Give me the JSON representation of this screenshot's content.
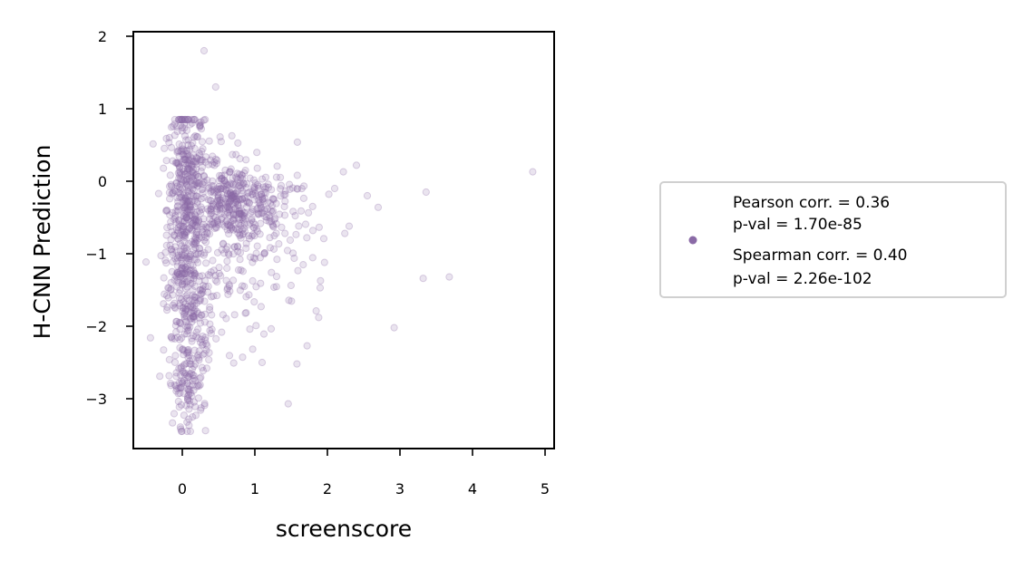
{
  "colors": {
    "point": "#8a6aa6",
    "axis": "#000000",
    "legend_border": "#d0d0d0"
  },
  "chart_data": {
    "type": "scatter",
    "xlabel": "screenscore",
    "ylabel": "H-CNN Prediction",
    "xlim": [
      -0.68,
      5.1
    ],
    "ylim": [
      -3.7,
      2.07
    ],
    "xticks": [
      "0",
      "1",
      "2",
      "3",
      "4",
      "5"
    ],
    "yticks": [
      "2",
      "1",
      "0",
      "−1",
      "−2",
      "−3"
    ],
    "grid": false,
    "legend_position": "right",
    "legend": {
      "entries": [
        "Pearson corr. = 0.36",
        "p-val = 1.70e-85",
        "Spearman corr. = 0.40",
        "p-val = 2.26e-102"
      ]
    },
    "points": [
      [
        0.3,
        1.8
      ],
      [
        0.46,
        1.3
      ],
      [
        4.83,
        0.13
      ],
      [
        3.36,
        -0.15
      ],
      [
        3.68,
        -1.32
      ],
      [
        3.32,
        -1.34
      ],
      [
        2.92,
        -2.02
      ],
      [
        2.4,
        0.22
      ],
      [
        2.22,
        0.13
      ],
      [
        1.46,
        -3.07
      ],
      [
        1.58,
        -2.52
      ],
      [
        1.72,
        -2.27
      ],
      [
        1.1,
        -2.5
      ],
      [
        0.32,
        -3.44
      ],
      [
        1.88,
        -1.88
      ],
      [
        1.96,
        -1.12
      ],
      [
        1.9,
        -1.47
      ],
      [
        2.24,
        -0.72
      ],
      [
        2.3,
        -0.62
      ],
      [
        2.1,
        -0.1
      ],
      [
        2.02,
        -0.18
      ],
      [
        2.7,
        -0.36
      ],
      [
        2.55,
        -0.2
      ],
      [
        1.8,
        -0.68
      ]
    ]
  }
}
